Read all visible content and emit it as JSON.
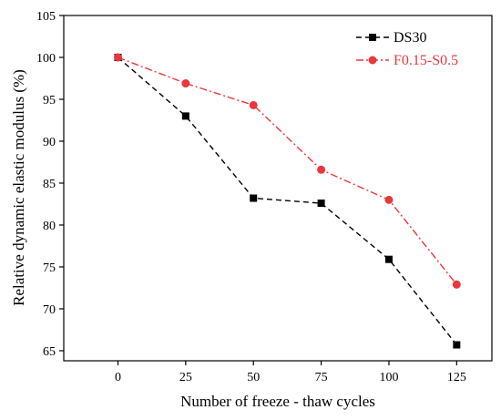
{
  "chart_data": {
    "type": "line",
    "title": "",
    "xlabel": "Number of freeze - thaw cycles",
    "ylabel": "Relative dynamic elastic modulus  (%)",
    "x": [
      0,
      25,
      50,
      75,
      100,
      125
    ],
    "xlim": [
      -20,
      138
    ],
    "ylim": [
      63.8,
      105
    ],
    "xticks": [
      "0",
      "25",
      "50",
      "75",
      "100",
      "125"
    ],
    "yticks": [
      "65",
      "70",
      "75",
      "80",
      "85",
      "90",
      "95",
      "100",
      "105"
    ],
    "xtick_values": [
      0,
      25,
      50,
      75,
      100,
      125
    ],
    "ytick_values": [
      65,
      70,
      75,
      80,
      85,
      90,
      95,
      100,
      105
    ],
    "grid": false,
    "legend_position": "top-right",
    "series": [
      {
        "name": "DS30",
        "values": [
          100,
          93.0,
          83.2,
          82.6,
          75.9,
          65.7
        ],
        "color": "#000000",
        "marker": "square",
        "line_style": "dashed"
      },
      {
        "name": "F0.15-S0.5",
        "values": [
          100,
          96.9,
          94.3,
          86.6,
          83.0,
          72.9
        ],
        "color": "#e8383d",
        "marker": "circle",
        "line_style": "dash-dot"
      }
    ]
  }
}
